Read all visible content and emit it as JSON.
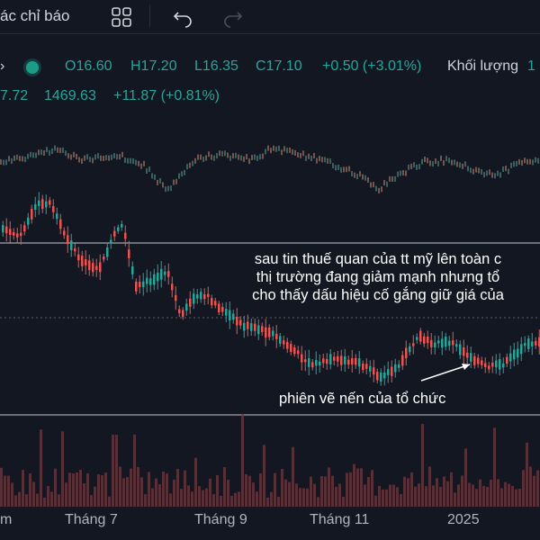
{
  "toolbar": {
    "indicators_label": "ác chỉ báo",
    "icons": [
      "layout-grid-icon",
      "undo-icon",
      "redo-icon"
    ]
  },
  "ohlc": {
    "open": "O16.60",
    "high": "H17.20",
    "low": "L16.35",
    "close": "C17.10",
    "change": "+0.50 (+3.01%)",
    "volume_label": "Khối lượng",
    "volume_cut": "1"
  },
  "index": {
    "prev": "7.72",
    "value": "1469.63",
    "change": "+11.87 (+0.81%)"
  },
  "annotation": {
    "line1": "sau tin thuế quan của tt mỹ lên toàn c",
    "line2": "thị trường đang giảm mạnh nhưng tổ",
    "line3": "cho thấy dấu hiệu cố gắng giữ giá của",
    "arrow_note": "phiên vẽ nến của tổ chức"
  },
  "x_axis": [
    "m",
    "Tháng 7",
    "Tháng 9",
    "Tháng 11",
    "2025"
  ],
  "colors": {
    "background": "#131722",
    "up": "#26a69a",
    "down": "#ef5350",
    "text": "#d1d4dc"
  }
}
